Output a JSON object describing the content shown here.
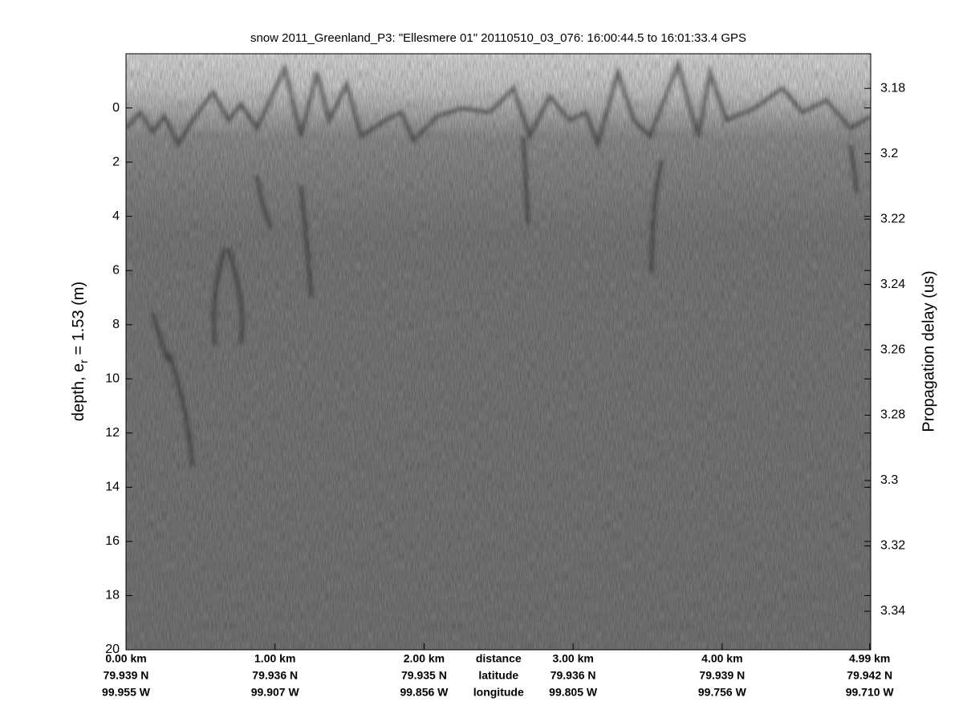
{
  "chart_data": {
    "type": "echogram",
    "title": "snow 2011_Greenland_P3: \"Ellesmere 01\"  20110510_03_076: 16:00:44.5 to 16:01:33.4 GPS",
    "ylabel": [
      "depth, e",
      "r",
      " = 1.53 (m)"
    ],
    "y2label": "Propagation delay (us)",
    "ylim": [
      -2,
      20
    ],
    "y_inverted": true,
    "yticks": [
      0,
      2,
      4,
      6,
      8,
      10,
      12,
      14,
      16,
      18,
      20
    ],
    "y2lim": [
      3.1694,
      3.3518
    ],
    "y2ticks": [
      3.18,
      3.2,
      3.22,
      3.24,
      3.26,
      3.28,
      3.3,
      3.32,
      3.34
    ],
    "xlim": [
      0,
      4.997
    ],
    "xticks": [
      {
        "value": 0,
        "label": "0.00 km"
      },
      {
        "value": 1,
        "label": "1.00 km"
      },
      {
        "value": 2,
        "label": "2.00 km"
      },
      {
        "value": 3,
        "label": "3.00 km"
      },
      {
        "value": 4,
        "label": "4.00 km"
      },
      {
        "value": 4.99,
        "label": "4.99 km"
      }
    ],
    "xtick_latitudes": [
      "79.939 N",
      "79.936 N",
      "79.935 N",
      "79.936 N",
      "79.939 N",
      "79.942 N"
    ],
    "xtick_longitudes": [
      "99.955 W",
      "99.907 W",
      "99.856 W",
      "99.805 W",
      "99.756 W",
      "99.710 W"
    ],
    "xtick_row_labels": [
      "distance",
      "latitude",
      "longitude"
    ],
    "colormap": "gray"
  }
}
